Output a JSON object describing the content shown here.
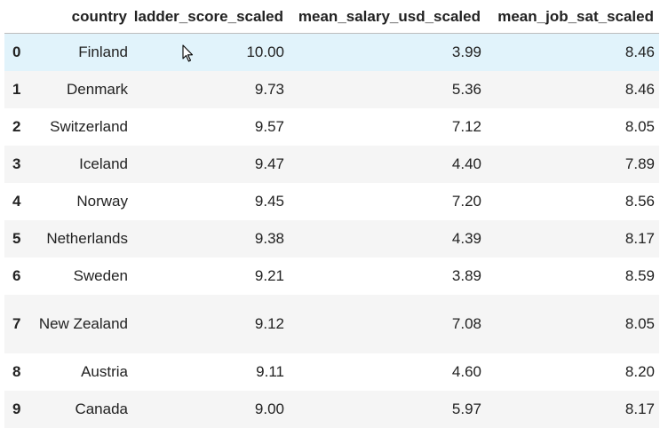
{
  "table": {
    "columns": [
      "",
      "country",
      "ladder_score_scaled",
      "mean_salary_usd_scaled",
      "mean_job_sat_scaled"
    ],
    "rows": [
      {
        "index": "0",
        "country": "Finland",
        "ladder": "10.00",
        "salary": "3.99",
        "jobsat": "8.46"
      },
      {
        "index": "1",
        "country": "Denmark",
        "ladder": "9.73",
        "salary": "5.36",
        "jobsat": "8.46"
      },
      {
        "index": "2",
        "country": "Switzerland",
        "ladder": "9.57",
        "salary": "7.12",
        "jobsat": "8.05"
      },
      {
        "index": "3",
        "country": "Iceland",
        "ladder": "9.47",
        "salary": "4.40",
        "jobsat": "7.89"
      },
      {
        "index": "4",
        "country": "Norway",
        "ladder": "9.45",
        "salary": "7.20",
        "jobsat": "8.56"
      },
      {
        "index": "5",
        "country": "Netherlands",
        "ladder": "9.38",
        "salary": "4.39",
        "jobsat": "8.17"
      },
      {
        "index": "6",
        "country": "Sweden",
        "ladder": "9.21",
        "salary": "3.89",
        "jobsat": "8.59"
      },
      {
        "index": "7",
        "country": "New Zealand",
        "ladder": "9.12",
        "salary": "7.08",
        "jobsat": "8.05"
      },
      {
        "index": "8",
        "country": "Austria",
        "ladder": "9.11",
        "salary": "4.60",
        "jobsat": "8.20"
      },
      {
        "index": "9",
        "country": "Canada",
        "ladder": "9.00",
        "salary": "5.97",
        "jobsat": "8.17"
      }
    ]
  },
  "colors": {
    "row_hover": "#e1f3fb",
    "row_stripe": "#f5f5f5",
    "header_border": "#bdbdbd"
  },
  "cursor": {
    "icon": "mouse-pointer-icon"
  }
}
